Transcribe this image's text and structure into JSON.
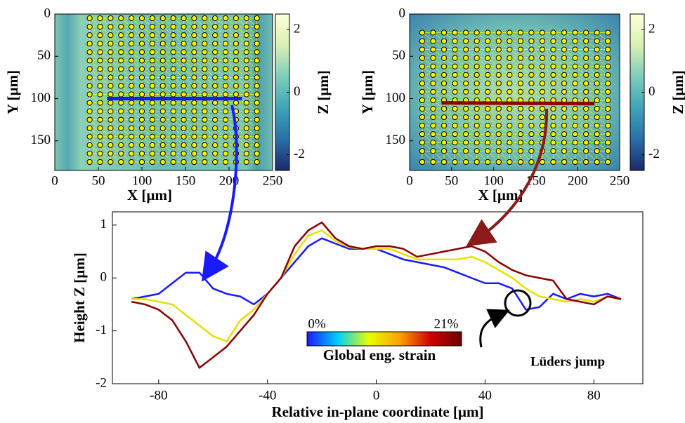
{
  "chart_data": [
    {
      "type": "map",
      "xlabel": "X [µm]",
      "ylabel": "Y [µm]",
      "cbar_label": "Z [µm]",
      "xlim": [
        0,
        250
      ],
      "ylim": [
        0,
        185
      ],
      "y_reversed": true,
      "xticks": [
        0,
        50,
        100,
        150,
        200,
        250
      ],
      "yticks": [
        0,
        50,
        100,
        150
      ],
      "zlim": [
        -2.5,
        2.5
      ],
      "cbar_ticks": [
        -2,
        0,
        2
      ],
      "colormap": [
        "#1b2a6b",
        "#2b6fa8",
        "#3fa5b8",
        "#7fcdbb",
        "#d9f0b3",
        "#ffffd9"
      ],
      "marker_color": "#f5f500",
      "x": [
        40,
        52,
        64,
        76,
        88,
        100,
        112,
        124,
        136,
        148,
        160,
        172,
        184,
        196,
        208,
        220,
        232
      ],
      "y": [
        5,
        15,
        25,
        35,
        45,
        55,
        65,
        75,
        85,
        95,
        105,
        115,
        125,
        135,
        145,
        155,
        165,
        175
      ],
      "profile": {
        "x": [
          60,
          215
        ],
        "y": [
          100,
          100
        ],
        "color": "#1a1aff"
      }
    },
    {
      "type": "map",
      "xlabel": "X [µm]",
      "ylabel": "Y [µm]",
      "cbar_label": "Z [µm]",
      "xlim": [
        0,
        250
      ],
      "ylim": [
        0,
        185
      ],
      "y_reversed": true,
      "xticks": [
        0,
        50,
        100,
        150,
        200,
        250
      ],
      "yticks": [
        0,
        50,
        100,
        150
      ],
      "zlim": [
        -2.5,
        2.5
      ],
      "cbar_ticks": [
        -2,
        0,
        2
      ],
      "colormap": [
        "#1b2a6b",
        "#2b6fa8",
        "#3fa5b8",
        "#7fcdbb",
        "#d9f0b3",
        "#ffffd9"
      ],
      "marker_color": "#f5f500",
      "x": [
        15,
        28,
        41,
        54,
        67,
        80,
        93,
        106,
        119,
        132,
        145,
        158,
        171,
        184,
        197,
        210,
        223,
        236
      ],
      "y": [
        22,
        32,
        42,
        52,
        62,
        72,
        82,
        92,
        102,
        112,
        122,
        132,
        142,
        152,
        162,
        175
      ],
      "profile": {
        "x": [
          38,
          220
        ],
        "y": [
          105,
          106
        ],
        "color": "#8b0000"
      }
    },
    {
      "type": "line",
      "xlabel": "Relative in-plane coordinate [µm]",
      "ylabel": "Height Z [µm]",
      "xlim": [
        -97,
        98
      ],
      "ylim": [
        -2,
        1.25
      ],
      "xticks": [
        -80,
        -40,
        0,
        40,
        80
      ],
      "yticks": [
        -2,
        -1,
        0,
        1
      ],
      "x": [
        -90,
        -85,
        -80,
        -75,
        -70,
        -65,
        -60,
        -55,
        -50,
        -45,
        -40,
        -35,
        -30,
        -25,
        -20,
        -15,
        -10,
        -5,
        0,
        5,
        10,
        15,
        20,
        25,
        30,
        35,
        40,
        45,
        50,
        55,
        60,
        65,
        70,
        75,
        80,
        85,
        90
      ],
      "series": [
        {
          "color": "#1a1aff",
          "values": [
            -0.4,
            -0.35,
            -0.3,
            -0.1,
            0.1,
            0.1,
            -0.2,
            -0.3,
            -0.35,
            -0.5,
            -0.3,
            0,
            0.3,
            0.6,
            0.75,
            0.65,
            0.55,
            0.55,
            0.55,
            0.45,
            0.35,
            0.3,
            0.25,
            0.2,
            0.1,
            0,
            -0.1,
            -0.1,
            -0.2,
            -0.6,
            -0.55,
            -0.3,
            -0.4,
            -0.3,
            -0.35,
            -0.3,
            -0.4
          ]
        },
        {
          "color": "#e8e000",
          "values": [
            -0.4,
            -0.4,
            -0.45,
            -0.5,
            -0.7,
            -0.9,
            -1.1,
            -1.2,
            -0.8,
            -0.6,
            -0.3,
            0,
            0.45,
            0.8,
            0.9,
            0.7,
            0.58,
            0.55,
            0.55,
            0.55,
            0.45,
            0.35,
            0.35,
            0.35,
            0.35,
            0.4,
            0.3,
            0.15,
            0,
            -0.2,
            -0.35,
            -0.4,
            -0.45,
            -0.4,
            -0.45,
            -0.35,
            -0.4
          ]
        },
        {
          "color": "#8b0000",
          "values": [
            -0.45,
            -0.5,
            -0.6,
            -0.8,
            -1.2,
            -1.7,
            -1.5,
            -1.3,
            -1.0,
            -0.7,
            -0.3,
            0,
            0.6,
            0.9,
            1.05,
            0.75,
            0.6,
            0.55,
            0.6,
            0.6,
            0.55,
            0.4,
            0.45,
            0.5,
            0.55,
            0.6,
            0.5,
            0.3,
            0.15,
            0.05,
            0,
            -0.05,
            -0.4,
            -0.45,
            -0.5,
            -0.35,
            -0.4
          ]
        }
      ],
      "colorbar": {
        "colors": [
          "#1a1aff",
          "#00d0ff",
          "#e8ff00",
          "#ffa000",
          "#d00000",
          "#6b0000"
        ],
        "labels": [
          "0%",
          "21%"
        ],
        "title": "Global eng. strain"
      },
      "annotation": "Lüders jump"
    }
  ]
}
